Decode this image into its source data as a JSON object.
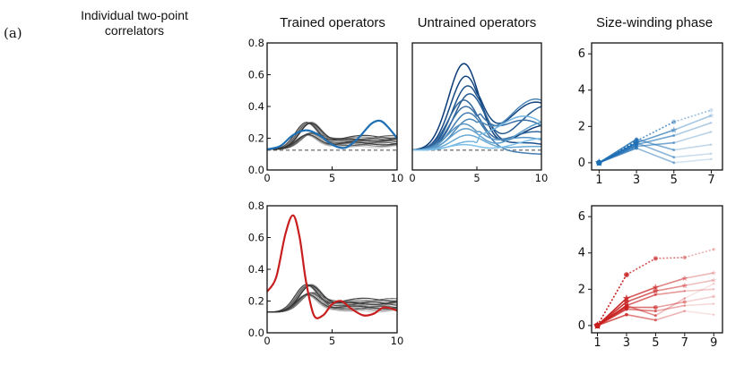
{
  "panel_label": "(a)",
  "correlators_title": "Individual two-point correlators",
  "colors": {
    "blue_main": "#1f6fb4",
    "red_main": "#c81e1e",
    "gray": "#555555",
    "dashed": "#444444"
  },
  "chart_data": [
    {
      "id": "trained-top",
      "type": "line",
      "title": "Trained operators",
      "xlim": [
        0,
        10
      ],
      "ylim": [
        0,
        0.8
      ],
      "xticks": [
        0,
        5,
        10
      ],
      "yticks": [
        0.0,
        0.2,
        0.4,
        0.6,
        0.8
      ],
      "xtick_labels": [
        "0",
        "5",
        "10"
      ],
      "ytick_labels": [
        "0.0",
        "0.2",
        "0.4",
        "0.6",
        "0.8"
      ],
      "baseline": 0.125,
      "highlight": {
        "color": "#1f6fb4",
        "points": [
          [
            0,
            0.13
          ],
          [
            1,
            0.15
          ],
          [
            2,
            0.22
          ],
          [
            3,
            0.25
          ],
          [
            4,
            0.22
          ],
          [
            5,
            0.16
          ],
          [
            6,
            0.14
          ],
          [
            7,
            0.2
          ],
          [
            8,
            0.29
          ],
          [
            8.7,
            0.31
          ],
          [
            9.3,
            0.27
          ],
          [
            10,
            0.2
          ]
        ]
      },
      "background_series": {
        "count": 14,
        "peak_x": 3.0,
        "peak_min": 0.22,
        "peak_max": 0.35,
        "tail_min": 0.15,
        "tail_max": 0.21
      }
    },
    {
      "id": "untrained-top",
      "type": "line",
      "title": "Untrained operators",
      "xlim": [
        0,
        10
      ],
      "ylim": [
        0,
        0.8
      ],
      "xticks": [
        0,
        5,
        10
      ],
      "xtick_labels": [
        "0",
        "5",
        "10"
      ],
      "baseline": 0.125,
      "series_peaks": [
        0.67,
        0.59,
        0.53,
        0.48,
        0.44,
        0.4,
        0.36,
        0.32,
        0.29,
        0.26,
        0.22,
        0.18,
        0.16
      ],
      "series_tails": [
        0.28,
        0.45,
        0.18,
        0.4,
        0.25,
        0.35,
        0.1,
        0.47,
        0.22,
        0.3,
        0.15,
        0.38,
        0.2
      ]
    },
    {
      "id": "trained-bottom",
      "type": "line",
      "title": "",
      "xlim": [
        0,
        10
      ],
      "ylim": [
        0,
        0.8
      ],
      "xticks": [
        0,
        5,
        10
      ],
      "yticks": [
        0.0,
        0.2,
        0.4,
        0.6,
        0.8
      ],
      "xtick_labels": [
        "0",
        "5",
        "10"
      ],
      "ytick_labels": [
        "0.0",
        "0.2",
        "0.4",
        "0.6",
        "0.8"
      ],
      "highlight": {
        "color": "#c81e1e",
        "points": [
          [
            0,
            0.26
          ],
          [
            0.7,
            0.35
          ],
          [
            1.4,
            0.62
          ],
          [
            2,
            0.74
          ],
          [
            2.5,
            0.6
          ],
          [
            3,
            0.32
          ],
          [
            3.6,
            0.11
          ],
          [
            4.3,
            0.11
          ],
          [
            5,
            0.18
          ],
          [
            5.7,
            0.2
          ],
          [
            6.5,
            0.15
          ],
          [
            7.4,
            0.11
          ],
          [
            8.2,
            0.12
          ],
          [
            9,
            0.16
          ],
          [
            10,
            0.14
          ]
        ]
      },
      "background_series": {
        "count": 14,
        "peak_x": 3.0,
        "peak_min": 0.24,
        "peak_max": 0.34,
        "tail_min": 0.14,
        "tail_max": 0.21
      }
    },
    {
      "id": "phase-top",
      "type": "scatter",
      "title": "Size-winding phase",
      "xlim": [
        0.6,
        7.6
      ],
      "ylim": [
        -0.4,
        6.6
      ],
      "xticks": [
        1,
        3,
        5,
        7
      ],
      "yticks": [
        0,
        2,
        4,
        6
      ],
      "xtick_labels": [
        "1",
        "3",
        "5",
        "7"
      ],
      "ytick_labels": [
        "0",
        "2",
        "4",
        "6"
      ],
      "color": "#1f6fb4",
      "series": [
        {
          "x": [
            1,
            3,
            5,
            7
          ],
          "y": [
            0,
            1.2,
            2.25,
            2.9
          ],
          "marker": "circle"
        },
        {
          "x": [
            1,
            3,
            5,
            7
          ],
          "y": [
            0,
            1.1,
            1.8,
            2.6
          ],
          "marker": "star"
        },
        {
          "x": [
            1,
            3,
            5,
            7
          ],
          "y": [
            0,
            1.0,
            1.5,
            2.2
          ],
          "marker": "dot"
        },
        {
          "x": [
            1,
            3,
            5,
            7
          ],
          "y": [
            0,
            0.9,
            1.1,
            1.7
          ],
          "marker": "dot"
        },
        {
          "x": [
            1,
            3,
            5,
            7
          ],
          "y": [
            0,
            1.3,
            0.7,
            1.0
          ],
          "marker": "dot"
        },
        {
          "x": [
            1,
            3,
            5,
            7
          ],
          "y": [
            0,
            1.1,
            0.3,
            0.5
          ],
          "marker": "dot"
        },
        {
          "x": [
            1,
            3,
            5,
            7
          ],
          "y": [
            0,
            0.8,
            0.0,
            0.2
          ],
          "marker": "dot"
        }
      ]
    },
    {
      "id": "phase-bottom",
      "type": "scatter",
      "title": "",
      "xlim": [
        0.6,
        9.6
      ],
      "ylim": [
        -0.4,
        6.6
      ],
      "xticks": [
        1,
        3,
        5,
        7,
        9
      ],
      "yticks": [
        0,
        2,
        4,
        6
      ],
      "xtick_labels": [
        "1",
        "3",
        "5",
        "7",
        "9"
      ],
      "ytick_labels": [
        "0",
        "2",
        "4",
        "6"
      ],
      "color": "#c81e1e",
      "series": [
        {
          "x": [
            1,
            3,
            5,
            7,
            9
          ],
          "y": [
            0,
            2.8,
            3.7,
            3.75,
            4.2
          ],
          "marker": "circle"
        },
        {
          "x": [
            1,
            3,
            5,
            7,
            9
          ],
          "y": [
            0,
            1.5,
            2.1,
            2.6,
            2.9
          ],
          "marker": "star"
        },
        {
          "x": [
            1,
            3,
            5,
            7,
            9
          ],
          "y": [
            0,
            1.3,
            1.9,
            2.2,
            2.5
          ],
          "marker": "star"
        },
        {
          "x": [
            1,
            3,
            5,
            7,
            9
          ],
          "y": [
            0,
            1.1,
            1.7,
            1.9,
            2.0
          ],
          "marker": "dot"
        },
        {
          "x": [
            1,
            3,
            5,
            7,
            9
          ],
          "y": [
            0,
            1.0,
            1.0,
            1.3,
            1.6
          ],
          "marker": "circle"
        },
        {
          "x": [
            1,
            3,
            5,
            7,
            9
          ],
          "y": [
            0,
            0.9,
            0.8,
            1.1,
            1.2
          ],
          "marker": "dot"
        },
        {
          "x": [
            1,
            3,
            5,
            7,
            9
          ],
          "y": [
            0,
            0.6,
            0.3,
            0.8,
            0.6
          ],
          "marker": "dot"
        },
        {
          "x": [
            1,
            3,
            5,
            7,
            9
          ],
          "y": [
            0,
            1.1,
            0.55,
            1.5,
            2.3
          ],
          "marker": "dot"
        }
      ]
    }
  ]
}
